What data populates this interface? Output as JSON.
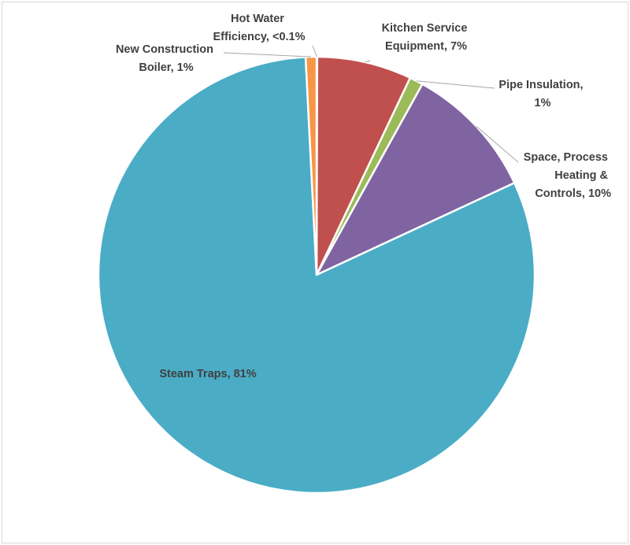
{
  "chart_data": {
    "type": "pie",
    "slices": [
      {
        "key": "hot_water",
        "name": "Hot Water Efficiency",
        "value": 0.05,
        "label_lines": [
          "Hot Water",
          "Efficiency, <0.1%"
        ],
        "color": "#4472c4"
      },
      {
        "key": "kitchen",
        "name": "Kitchen Service Equipment",
        "value": 7,
        "label_lines": [
          "Kitchen Service",
          "Equipment, 7%"
        ],
        "color": "#c0504d"
      },
      {
        "key": "pipe",
        "name": "Pipe Insulation",
        "value": 1,
        "label_lines": [
          "Pipe Insulation,",
          "1%"
        ],
        "color": "#9bbb59"
      },
      {
        "key": "space",
        "name": "Space, Process Heating & Controls",
        "value": 10,
        "label_lines": [
          "Space, Process",
          "Heating &",
          "Controls, 10%"
        ],
        "color": "#8064a2"
      },
      {
        "key": "steam",
        "name": "Steam Traps",
        "value": 81,
        "label_lines": [
          "Steam Traps, 81%"
        ],
        "color": "#4bacc6"
      },
      {
        "key": "boiler",
        "name": "New Construction Boiler",
        "value": 0.8,
        "label_lines": [
          "New Construction",
          "Boiler, 1%"
        ],
        "color": "#f79646"
      }
    ],
    "start_angle_deg": 0,
    "direction": "clockwise",
    "legend": "none",
    "title": ""
  }
}
